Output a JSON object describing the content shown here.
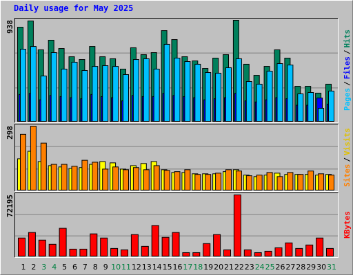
{
  "chart_data": [
    {
      "type": "bar",
      "title": "Daily usage for May 2025",
      "ylim": [
        0,
        938
      ],
      "yticks": [
        938
      ],
      "grid_divisions": 3,
      "legend_separator": "/",
      "series": [
        {
          "name": "Hits",
          "color": "#00805c",
          "values": [
            874,
            932,
            664,
            753,
            676,
            600,
            574,
            695,
            600,
            581,
            485,
            683,
            619,
            638,
            842,
            759,
            600,
            561,
            491,
            587,
            619,
            938,
            530,
            427,
            510,
            664,
            587,
            325,
            325,
            262,
            345
          ]
        },
        {
          "name": "Files",
          "color": "#0000ff",
          "values": [
            250,
            260,
            200,
            240,
            230,
            220,
            210,
            250,
            230,
            220,
            190,
            240,
            230,
            230,
            260,
            240,
            230,
            220,
            200,
            210,
            220,
            260,
            190,
            180,
            200,
            220,
            210,
            150,
            150,
            217,
            160
          ]
        },
        {
          "name": "Pages",
          "color": "#00c0ff",
          "values": [
            670,
            695,
            421,
            638,
            485,
            549,
            472,
            510,
            517,
            510,
            434,
            574,
            581,
            485,
            715,
            587,
            555,
            530,
            453,
            447,
            498,
            581,
            370,
            345,
            466,
            536,
            523,
            255,
            268,
            121,
            281
          ]
        }
      ]
    },
    {
      "type": "bar",
      "ylim": [
        0,
        298
      ],
      "yticks": [
        298
      ],
      "grid_divisions": 3,
      "legend_separator": "/",
      "series": [
        {
          "name": "Visits",
          "color": "#ffff00",
          "label_color": "#e0c000",
          "values": [
            146,
            181,
            133,
            114,
            108,
            101,
            105,
            120,
            133,
            127,
            98,
            114,
            124,
            133,
            95,
            82,
            82,
            76,
            76,
            76,
            86,
            95,
            70,
            63,
            70,
            79,
            73,
            73,
            73,
            70,
            73
          ]
        },
        {
          "name": "Sites",
          "color": "#ff8000",
          "values": [
            260,
            298,
            219,
            120,
            120,
            111,
            139,
            130,
            98,
            108,
            95,
            105,
            95,
            114,
            92,
            86,
            95,
            73,
            73,
            79,
            95,
            89,
            67,
            70,
            82,
            63,
            82,
            73,
            89,
            76,
            70
          ]
        }
      ]
    },
    {
      "type": "bar",
      "ylim": [
        0,
        72195
      ],
      "yticks": [
        72195
      ],
      "grid_divisions": 3,
      "categories": [
        "1",
        "2",
        "3",
        "4",
        "5",
        "6",
        "7",
        "8",
        "9",
        "10",
        "11",
        "12",
        "13",
        "14",
        "15",
        "16",
        "17",
        "18",
        "19",
        "20",
        "21",
        "22",
        "23",
        "24",
        "25",
        "26",
        "27",
        "28",
        "29",
        "30",
        "31"
      ],
      "category_colors": [
        "#000000",
        "#000000",
        "#008040",
        "#008040",
        "#000000",
        "#000000",
        "#000000",
        "#000000",
        "#000000",
        "#008040",
        "#008040",
        "#000000",
        "#000000",
        "#000000",
        "#000000",
        "#000000",
        "#008040",
        "#008040",
        "#000000",
        "#000000",
        "#000000",
        "#000000",
        "#000000",
        "#008040",
        "#008040",
        "#000000",
        "#000000",
        "#000000",
        "#000000",
        "#000000",
        "#008040"
      ],
      "series": [
        {
          "name": "KBytes",
          "color": "#ff0000",
          "values": [
            21320,
            27880,
            18860,
            13940,
            32800,
            8200,
            8200,
            26240,
            21320,
            9020,
            7380,
            25420,
            11480,
            36080,
            22140,
            27880,
            4100,
            4100,
            14760,
            25420,
            7380,
            72195,
            7380,
            4100,
            5740,
            9840,
            15580,
            9020,
            13120,
            21320,
            9020
          ]
        }
      ]
    }
  ]
}
